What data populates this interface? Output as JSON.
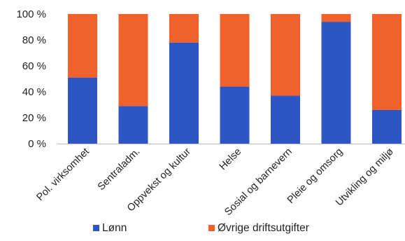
{
  "chart_data": {
    "type": "bar",
    "stacked": true,
    "percent": true,
    "categories": [
      "Pol. virksomhet",
      "Sentraladm.",
      "Oppvekst og kultur",
      "Helse",
      "Sosial og barnevern",
      "Pleie og omsorg",
      "Utvikling og miljø"
    ],
    "series": [
      {
        "name": "Lønn",
        "color": "#2e55c4",
        "values": [
          51,
          29,
          78,
          44,
          37,
          94,
          26
        ]
      },
      {
        "name": "Øvrige driftsutgifter",
        "color": "#f1612b",
        "values": [
          49,
          71,
          22,
          56,
          63,
          6,
          74
        ]
      }
    ],
    "y_ticks": [
      "0 %",
      "20 %",
      "40 %",
      "60 %",
      "80 %",
      "100 %"
    ],
    "ylim": [
      0,
      100
    ],
    "grid": false,
    "legend_position": "bottom"
  }
}
